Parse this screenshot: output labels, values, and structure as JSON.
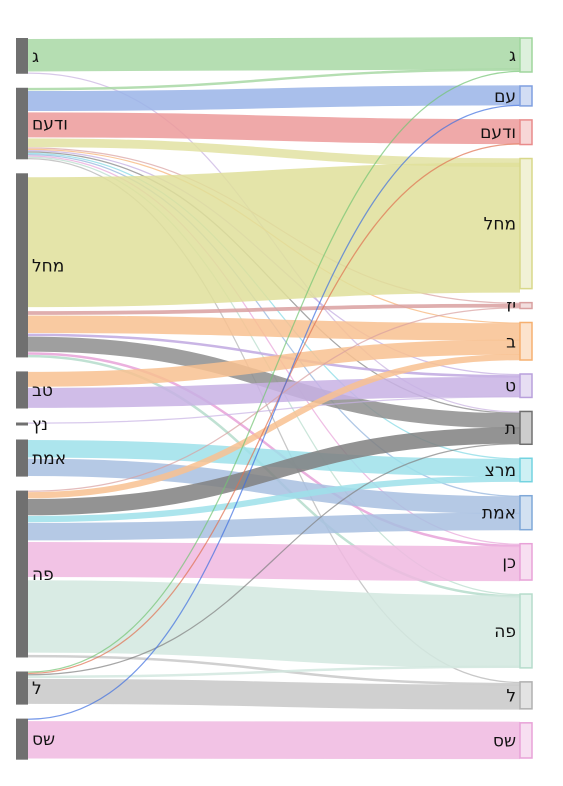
{
  "chart_data": {
    "type": "sankey",
    "source_nodes": [
      {
        "id": "s_g",
        "label": "ג",
        "color": "#707070"
      },
      {
        "id": "s_vdam",
        "label": "ודעם",
        "color": "#707070"
      },
      {
        "id": "s_mhl",
        "label": "מחל",
        "color": "#707070"
      },
      {
        "id": "s_tv",
        "label": "טב",
        "color": "#707070"
      },
      {
        "id": "s_nz",
        "label": "נץ",
        "color": "#707070"
      },
      {
        "id": "s_amt",
        "label": "אמת",
        "color": "#707070"
      },
      {
        "id": "s_pe",
        "label": "פה",
        "color": "#707070"
      },
      {
        "id": "s_l",
        "label": "ל",
        "color": "#707070"
      },
      {
        "id": "s_ss",
        "label": "שס",
        "color": "#707070"
      }
    ],
    "target_nodes": [
      {
        "id": "t_g",
        "label": "ג",
        "color": "#9fd59c"
      },
      {
        "id": "t_am",
        "label": "עם",
        "color": "#7f9fe0"
      },
      {
        "id": "t_vdam",
        "label": "ודעם",
        "color": "#e98b8b"
      },
      {
        "id": "t_mhl",
        "label": "מחל",
        "color": "#d8d88a"
      },
      {
        "id": "t_yz",
        "label": "יז",
        "color": "#d9a0a0"
      },
      {
        "id": "t_b",
        "label": "ב",
        "color": "#f6b070"
      },
      {
        "id": "t_t",
        "label": "ט",
        "color": "#b9a0dc"
      },
      {
        "id": "t_tav",
        "label": "ת",
        "color": "#707070"
      },
      {
        "id": "t_mrz",
        "label": "מרצ",
        "color": "#73d3e0"
      },
      {
        "id": "t_amt",
        "label": "אמת",
        "color": "#7fa8d8"
      },
      {
        "id": "t_kn",
        "label": "כן",
        "color": "#e8a2d8"
      },
      {
        "id": "t_pe",
        "label": "פה",
        "color": "#b5dccb"
      },
      {
        "id": "t_l",
        "label": "ל",
        "color": "#b0b0b0"
      },
      {
        "id": "t_ss",
        "label": "שס",
        "color": "#e8a2d8"
      }
    ],
    "links": [
      {
        "source": "s_g",
        "target": "t_g",
        "value": 26,
        "color": "#a8d8a4"
      },
      {
        "source": "s_g",
        "target": "t_tav",
        "value": 1,
        "color": "#c8b0e0"
      },
      {
        "source": "s_vdam",
        "target": "t_g",
        "value": 2,
        "color": "#a8d8a4"
      },
      {
        "source": "s_vdam",
        "target": "t_am",
        "value": 16,
        "color": "#9ab4e8"
      },
      {
        "source": "s_vdam",
        "target": "t_vdam",
        "value": 20,
        "color": "#ec9a9a"
      },
      {
        "source": "s_vdam",
        "target": "t_mhl",
        "value": 7,
        "color": "#e2e2a2"
      },
      {
        "source": "s_vdam",
        "target": "t_yz",
        "value": 1,
        "color": "#d9a0a0"
      },
      {
        "source": "s_vdam",
        "target": "t_b",
        "value": 1,
        "color": "#f6b070"
      },
      {
        "source": "s_vdam",
        "target": "t_t",
        "value": 1,
        "color": "#c0a8e0"
      },
      {
        "source": "s_vdam",
        "target": "t_tav",
        "value": 1,
        "color": "#808080"
      },
      {
        "source": "s_vdam",
        "target": "t_mrz",
        "value": 1,
        "color": "#80d8e4"
      },
      {
        "source": "s_vdam",
        "target": "t_amt",
        "value": 1,
        "color": "#8fb0dc"
      },
      {
        "source": "s_vdam",
        "target": "t_kn",
        "value": 1,
        "color": "#e8a2d8"
      },
      {
        "source": "s_vdam",
        "target": "t_pe",
        "value": 1,
        "color": "#b5dccb"
      },
      {
        "source": "s_vdam",
        "target": "t_l",
        "value": 1,
        "color": "#b0b0b0"
      },
      {
        "source": "s_mhl",
        "target": "t_mhl",
        "value": 104,
        "color": "#dfdf9a"
      },
      {
        "source": "s_mhl",
        "target": "t_yz",
        "value": 3,
        "color": "#d9a0a0"
      },
      {
        "source": "s_mhl",
        "target": "t_b",
        "value": 14,
        "color": "#f8c190"
      },
      {
        "source": "s_mhl",
        "target": "t_t",
        "value": 2,
        "color": "#c0a8e0"
      },
      {
        "source": "s_mhl",
        "target": "t_tav",
        "value": 12,
        "color": "#8e8e8e"
      },
      {
        "source": "s_mhl",
        "target": "t_kn",
        "value": 2,
        "color": "#e8a2d8"
      },
      {
        "source": "s_mhl",
        "target": "t_pe",
        "value": 2,
        "color": "#b5dccb"
      },
      {
        "source": "s_tv",
        "target": "t_b",
        "value": 12,
        "color": "#f8c190"
      },
      {
        "source": "s_tv",
        "target": "t_t",
        "value": 16,
        "color": "#c8b2e4"
      },
      {
        "source": "s_nz",
        "target": "t_t",
        "value": 1,
        "color": "#c8b2e4"
      },
      {
        "source": "s_amt",
        "target": "t_mrz",
        "value": 14,
        "color": "#9ee0ea"
      },
      {
        "source": "s_amt",
        "target": "t_amt",
        "value": 14,
        "color": "#a8c0e0"
      },
      {
        "source": "s_pe",
        "target": "t_yz",
        "value": 1,
        "color": "#d9a0a0"
      },
      {
        "source": "s_pe",
        "target": "t_b",
        "value": 5,
        "color": "#f8c190"
      },
      {
        "source": "s_pe",
        "target": "t_tav",
        "value": 13,
        "color": "#808080"
      },
      {
        "source": "s_pe",
        "target": "t_mrz",
        "value": 5,
        "color": "#9ee0ea"
      },
      {
        "source": "s_pe",
        "target": "t_amt",
        "value": 14,
        "color": "#a8c0e0"
      },
      {
        "source": "s_pe",
        "target": "t_kn",
        "value": 28,
        "color": "#f0b8e0"
      },
      {
        "source": "s_pe",
        "target": "t_pe",
        "value": 58,
        "color": "#d2e8df"
      },
      {
        "source": "s_pe",
        "target": "t_l",
        "value": 2,
        "color": "#c8c8c8"
      },
      {
        "source": "s_l",
        "target": "t_g",
        "value": 1,
        "color": "#74c474"
      },
      {
        "source": "s_l",
        "target": "t_vdam",
        "value": 1,
        "color": "#e07050"
      },
      {
        "source": "s_l",
        "target": "t_tav",
        "value": 1,
        "color": "#808080"
      },
      {
        "source": "s_l",
        "target": "t_pe",
        "value": 2,
        "color": "#d2e8df"
      },
      {
        "source": "s_l",
        "target": "t_l",
        "value": 20,
        "color": "#c8c8c8"
      },
      {
        "source": "s_ss",
        "target": "t_am",
        "value": 1,
        "color": "#3f6fe0"
      },
      {
        "source": "s_ss",
        "target": "t_ss",
        "value": 30,
        "color": "#f0b8e0"
      }
    ]
  }
}
